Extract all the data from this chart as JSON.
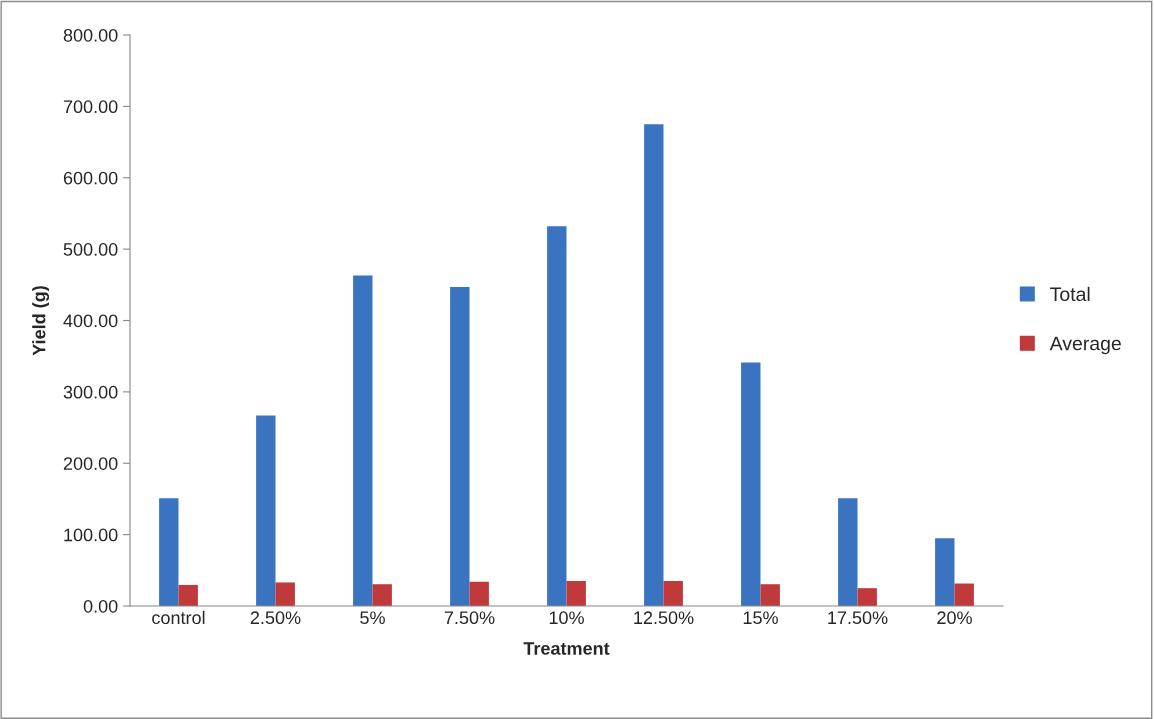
{
  "chart_data": {
    "type": "bar",
    "xlabel": "Treatment",
    "ylabel": "Yield (g)",
    "categories": [
      "control",
      "2.50%",
      "5%",
      "7.50%",
      "10%",
      "12.50%",
      "15%",
      "17.50%",
      "20%"
    ],
    "series": [
      {
        "name": "Total",
        "color": "#3a74c0",
        "values": [
          151,
          267,
          463,
          447,
          532,
          675,
          341,
          151,
          95
        ]
      },
      {
        "name": "Average",
        "color": "#c0393b",
        "values": [
          29.5,
          33,
          30.5,
          34,
          35,
          35,
          30.5,
          25,
          31.5
        ]
      }
    ],
    "ylim": [
      0,
      800
    ],
    "yticks": [
      {
        "value": 0,
        "label": "0.00"
      },
      {
        "value": 100,
        "label": "100.00"
      },
      {
        "value": 200,
        "label": "200.00"
      },
      {
        "value": 300,
        "label": "300.00"
      },
      {
        "value": 400,
        "label": "400.00"
      },
      {
        "value": 500,
        "label": "500.00"
      },
      {
        "value": 600,
        "label": "600.00"
      },
      {
        "value": 700,
        "label": "700.00"
      },
      {
        "value": 800,
        "label": "800.00"
      }
    ],
    "grid": false,
    "legend": "right"
  }
}
